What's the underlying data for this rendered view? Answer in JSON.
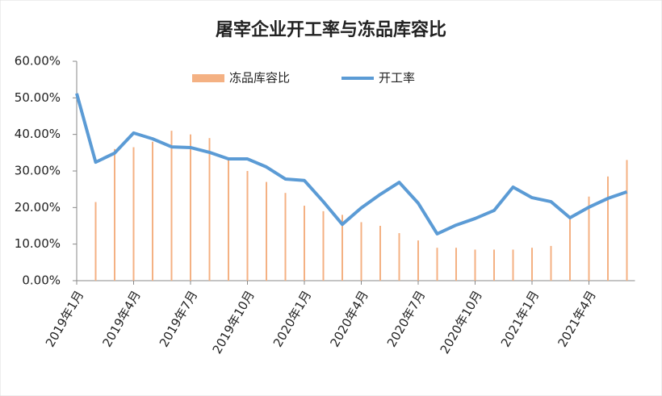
{
  "chart_data": {
    "type": "bar-line",
    "title": "屠宰企业开工率与冻品库容比",
    "categories": [
      "2019年1月",
      null,
      null,
      "2019年4月",
      null,
      null,
      "2019年7月",
      null,
      null,
      "2019年10月",
      null,
      null,
      "2020年1月",
      null,
      null,
      "2020年4月",
      null,
      null,
      "2020年7月",
      null,
      null,
      "2020年10月",
      null,
      null,
      "2021年1月",
      null,
      null,
      "2021年4月",
      null,
      null
    ],
    "series": [
      {
        "name": "冻品库容比",
        "kind": "bar",
        "color": "#f4b183",
        "values": [
          null,
          21.5,
          36,
          36.5,
          38,
          41,
          40,
          39,
          33,
          30,
          27,
          24,
          20.5,
          19,
          18,
          16,
          15,
          13,
          11,
          9,
          9,
          8.5,
          8.5,
          8.5,
          9,
          9.5,
          17,
          23,
          28.5,
          33
        ]
      },
      {
        "name": "开工率",
        "kind": "line",
        "color": "#5b9bd5",
        "values": [
          51.2,
          32.4,
          34.9,
          40.4,
          38.8,
          36.6,
          36.4,
          35.1,
          33.3,
          33.3,
          31.1,
          27.8,
          27.4,
          21.6,
          15.4,
          19.9,
          23.6,
          26.9,
          21.2,
          12.8,
          15.2,
          17.0,
          19.2,
          25.6,
          22.7,
          21.6,
          17.2,
          20.1,
          22.5,
          24.3
        ]
      }
    ],
    "ylim": [
      0,
      60
    ],
    "yticks": [
      {
        "value": 0,
        "label": "0.00%"
      },
      {
        "value": 10,
        "label": "10.00%"
      },
      {
        "value": 20,
        "label": "20.00%"
      },
      {
        "value": 30,
        "label": "30.00%"
      },
      {
        "value": 40,
        "label": "40.00%"
      },
      {
        "value": 50,
        "label": "50.00%"
      },
      {
        "value": 60,
        "label": "60.00%"
      }
    ],
    "legend": "top"
  }
}
